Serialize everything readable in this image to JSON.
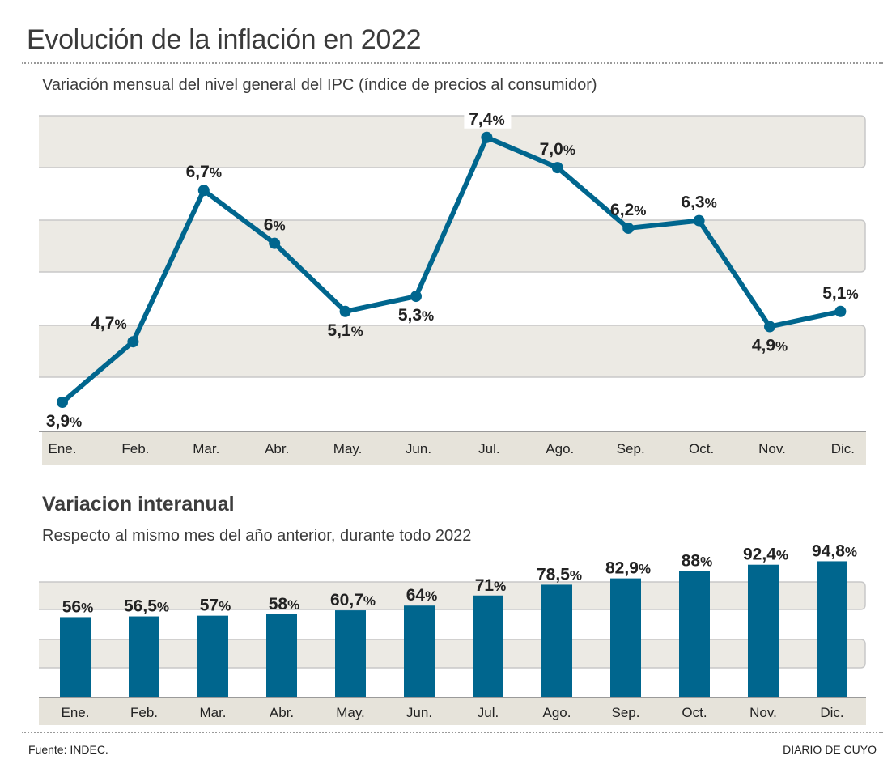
{
  "header": {
    "title": "Evolución de la inflación en 2022"
  },
  "footer": {
    "source": "Fuente: INDEC.",
    "brand": "DIARIO DE CUYO"
  },
  "colors": {
    "series": "#00668e",
    "band": "#eceae4",
    "axis_band": "#e6e3da",
    "band_border": "#c8c8c8"
  },
  "chart_data": [
    {
      "type": "line",
      "title": "Variación mensual del nivel general del IPC (índice de precios al consumidor)",
      "xlabel": "",
      "ylabel": "",
      "categories": [
        "Ene.",
        "Feb.",
        "Mar.",
        "Abr.",
        "May.",
        "Jun.",
        "Jul.",
        "Ago.",
        "Sep.",
        "Oct.",
        "Nov.",
        "Dic."
      ],
      "values": [
        3.9,
        4.7,
        6.7,
        6.0,
        5.1,
        5.3,
        7.4,
        7.0,
        6.2,
        6.3,
        4.9,
        5.1
      ],
      "labels": [
        "3,9",
        "4,7",
        "6,7",
        "6",
        "5,1",
        "5,3",
        "7,4",
        "7,0",
        "6,2",
        "6,3",
        "4,9",
        "5,1"
      ],
      "label_suffix": "%",
      "label_position": [
        "below",
        "above-left",
        "above",
        "above",
        "below",
        "below",
        "above",
        "above",
        "above",
        "above",
        "below",
        "above"
      ],
      "ylim": [
        3.3,
        8.0
      ],
      "grid": "alternating bands",
      "legend": "none"
    },
    {
      "type": "bar",
      "title": "Variacion interanual",
      "subtitle": "Respecto al mismo mes del año anterior, durante todo 2022",
      "xlabel": "",
      "ylabel": "",
      "categories": [
        "Ene.",
        "Feb.",
        "Mar.",
        "Abr.",
        "May.",
        "Jun.",
        "Jul.",
        "Ago.",
        "Sep.",
        "Oct.",
        "Nov.",
        "Dic."
      ],
      "values": [
        56,
        56.5,
        57,
        58,
        60.7,
        64,
        71,
        78.5,
        82.9,
        88,
        92.4,
        94.8
      ],
      "labels": [
        "56",
        "56,5",
        "57",
        "58",
        "60,7",
        "64",
        "71",
        "78,5",
        "82,9",
        "88",
        "92,4",
        "94,8"
      ],
      "label_suffix": "%",
      "ylim": [
        0,
        100
      ],
      "grid": "alternating bands",
      "legend": "none"
    }
  ]
}
